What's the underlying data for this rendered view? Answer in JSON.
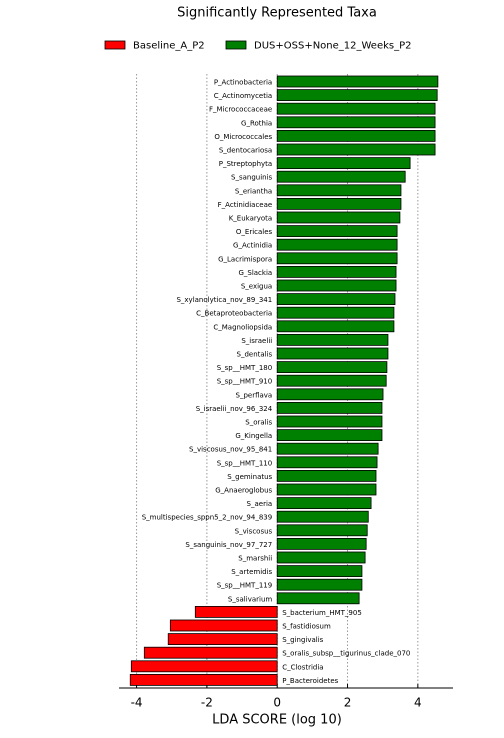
{
  "chart_data": {
    "type": "hbar",
    "title": "Significantly Represented Taxa",
    "x_label": "LDA SCORE (log 10)",
    "categories": [
      "P_Actinobacteria",
      "C_Actinomycetia",
      "F_Micrococcaceae",
      "G_Rothia",
      "O_Micrococcales",
      "S_dentocariosa",
      "P_Streptophyta",
      "S_sanguinis",
      "S_eriantha",
      "F_Actinidiaceae",
      "K_Eukaryota",
      "O_Ericales",
      "G_Actinidia",
      "G_Lacrimispora",
      "G_Slackia",
      "S_exigua",
      "S_xylanolytica_nov_89_341",
      "C_Betaproteobacteria",
      "C_Magnoliopsida",
      "S_israelii",
      "S_dentalis",
      "S_sp__HMT_180",
      "S_sp__HMT_910",
      "S_perflava",
      "S_israelii_nov_96_324",
      "S_oralis",
      "G_Kingella",
      "S_viscosus_nov_95_841",
      "S_sp__HMT_110",
      "S_geminatus",
      "G_Anaeroglobus",
      "S_aeria",
      "S_multispecies_sppn5_2_nov_94_839",
      "S_viscosus",
      "S_sanguinis_nov_97_727",
      "S_marshii",
      "S_artemidis",
      "S_sp__HMT_119",
      "S_salivarium",
      "S_bacterium_HMT_905",
      "S_fastidiosum",
      "S_gingivalis",
      "S_oralis_subsp__tigurinus_clade_070",
      "C_Clostridia",
      "P_Bacteroidetes"
    ],
    "series": [
      {
        "name": "Baseline_A_P2",
        "color": "#ff0000",
        "values": [
          null,
          null,
          null,
          null,
          null,
          null,
          null,
          null,
          null,
          null,
          null,
          null,
          null,
          null,
          null,
          null,
          null,
          null,
          null,
          null,
          null,
          null,
          null,
          null,
          null,
          null,
          null,
          null,
          null,
          null,
          null,
          null,
          null,
          null,
          null,
          null,
          null,
          null,
          null,
          -2.33,
          -3.04,
          -3.1,
          -3.78,
          -4.15,
          -4.18
        ]
      },
      {
        "name": "DUS+OSS+None_12_Weeks_P2",
        "color": "#008000",
        "values": [
          4.57,
          4.55,
          4.49,
          4.49,
          4.49,
          4.49,
          3.78,
          3.64,
          3.52,
          3.52,
          3.49,
          3.41,
          3.41,
          3.41,
          3.38,
          3.38,
          3.35,
          3.32,
          3.32,
          3.15,
          3.15,
          3.12,
          3.1,
          3.01,
          2.98,
          2.98,
          2.98,
          2.87,
          2.84,
          2.81,
          2.81,
          2.67,
          2.59,
          2.56,
          2.53,
          2.5,
          2.41,
          2.41,
          2.33,
          null,
          null,
          null,
          null,
          null,
          null
        ]
      }
    ],
    "xlim": [
      -4.5,
      5
    ],
    "xticks": [
      -4,
      -2,
      0,
      2,
      4
    ],
    "grid": true
  }
}
